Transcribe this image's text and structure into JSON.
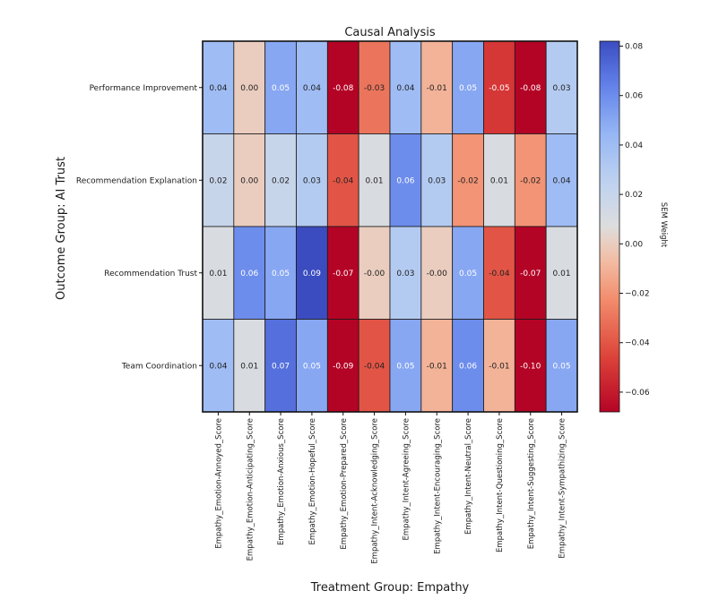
{
  "chart_data": {
    "type": "heatmap",
    "title": "Causal Analysis",
    "xlabel": "Treatment Group: Empathy",
    "ylabel": "Outcome Group: AI Trust",
    "colorbar_label": "SEM Weight",
    "colormap": "coolwarm_r",
    "vmin": -0.068,
    "vmax": 0.082,
    "colorbar_ticks": [
      0.08,
      0.06,
      0.04,
      0.02,
      0.0,
      -0.02,
      -0.04,
      -0.06
    ],
    "colorbar_tick_labels": [
      "0.08",
      "0.06",
      "0.04",
      "0.02",
      "0.00",
      "−0.02",
      "−0.04",
      "−0.06"
    ],
    "rows": [
      "Performance Improvement",
      "Recommendation Explanation",
      "Recommendation Trust",
      "Team Coordination"
    ],
    "columns": [
      "Empathy_Emotion-Annoyed_Score",
      "Empathy_Emotion-Anticipating_Score",
      "Empathy_Emotion-Anxious_Score",
      "Empathy_Emotion-Hopeful_Score",
      "Empathy_Emotion-Prepared_Score",
      "Empathy_Intent-Acknowledging_Score",
      "Empathy_Intent-Agreeing_Score",
      "Empathy_Intent-Encouraging_Score",
      "Empathy_Intent-Neutral_Score",
      "Empathy_Intent-Questioning_Score",
      "Empathy_Intent-Suggesting_Score",
      "Empathy_Intent-Sympathizing_Score"
    ],
    "values": [
      [
        0.04,
        0.0,
        0.05,
        0.04,
        -0.08,
        -0.03,
        0.04,
        -0.01,
        0.05,
        -0.05,
        -0.08,
        0.03
      ],
      [
        0.02,
        0.0,
        0.02,
        0.03,
        -0.04,
        0.01,
        0.06,
        0.03,
        -0.02,
        0.01,
        -0.02,
        0.04
      ],
      [
        0.01,
        0.06,
        0.05,
        0.09,
        -0.07,
        -0.0,
        0.03,
        -0.0,
        0.05,
        -0.04,
        -0.07,
        0.01
      ],
      [
        0.04,
        0.01,
        0.07,
        0.05,
        -0.09,
        -0.04,
        0.05,
        -0.01,
        0.06,
        -0.01,
        -0.1,
        0.05
      ]
    ],
    "value_labels": [
      [
        "0.04",
        "0.00",
        "0.05",
        "0.04",
        "-0.08",
        "-0.03",
        "0.04",
        "-0.01",
        "0.05",
        "-0.05",
        "-0.08",
        "0.03"
      ],
      [
        "0.02",
        "0.00",
        "0.02",
        "0.03",
        "-0.04",
        "0.01",
        "0.06",
        "0.03",
        "-0.02",
        "0.01",
        "-0.02",
        "0.04"
      ],
      [
        "0.01",
        "0.06",
        "0.05",
        "0.09",
        "-0.07",
        "-0.00",
        "0.03",
        "-0.00",
        "0.05",
        "-0.04",
        "-0.07",
        "0.01"
      ],
      [
        "0.04",
        "0.01",
        "0.07",
        "0.05",
        "-0.09",
        "-0.04",
        "0.05",
        "-0.01",
        "0.06",
        "-0.01",
        "-0.10",
        "0.05"
      ]
    ]
  }
}
